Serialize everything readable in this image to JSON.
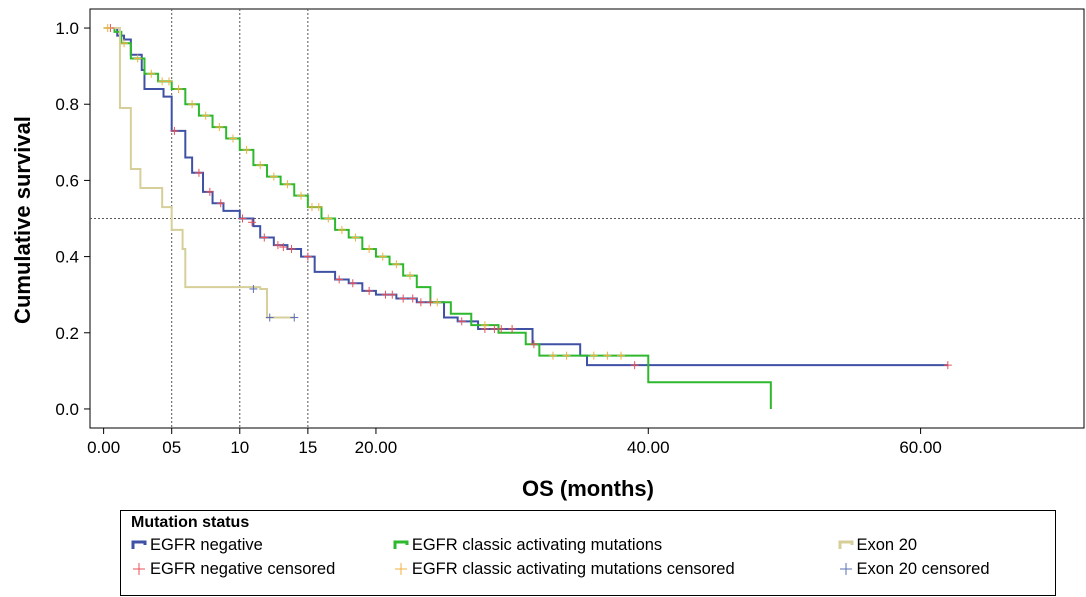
{
  "chart_data": {
    "type": "line",
    "subtype": "kaplan-meier",
    "xlabel": "OS (months)",
    "ylabel": "Cumulative survival",
    "xlim": [
      -1,
      72
    ],
    "ylim": [
      -0.05,
      1.05
    ],
    "x_ticks": [
      {
        "value": 0,
        "label": "0.00"
      },
      {
        "value": 5,
        "label": "05"
      },
      {
        "value": 10,
        "label": "10"
      },
      {
        "value": 15,
        "label": "15"
      },
      {
        "value": 20,
        "label": "20.00"
      },
      {
        "value": 40,
        "label": "40.00"
      },
      {
        "value": 60,
        "label": "60.00"
      }
    ],
    "y_ticks": [
      {
        "value": 0.0,
        "label": "0.0"
      },
      {
        "value": 0.2,
        "label": "0.2"
      },
      {
        "value": 0.4,
        "label": "0.4"
      },
      {
        "value": 0.6,
        "label": "0.6"
      },
      {
        "value": 0.8,
        "label": "0.8"
      },
      {
        "value": 1.0,
        "label": "1.0"
      }
    ],
    "reference_lines": {
      "vertical": [
        5,
        10,
        15
      ],
      "horizontal": [
        0.5
      ]
    },
    "legend": {
      "title": "Mutation status",
      "position": "bottom",
      "entries": [
        {
          "label": "EGFR negative",
          "kind": "line",
          "color": "#3f51a5"
        },
        {
          "label": "EGFR classic activating mutations",
          "kind": "line",
          "color": "#2db82d"
        },
        {
          "label": "Exon 20",
          "kind": "line",
          "color": "#d6cf9a"
        },
        {
          "label": "EGFR negative censored",
          "kind": "cross",
          "color": "#e8505a"
        },
        {
          "label": "EGFR classic activating mutations censored",
          "kind": "cross",
          "color": "#f0b040"
        },
        {
          "label": "Exon 20 censored",
          "kind": "cross",
          "color": "#5b6fb5"
        }
      ]
    },
    "series": [
      {
        "name": "EGFR negative",
        "color": "#3f51a5",
        "censor_color": "#e8505a",
        "steps": [
          [
            0,
            1.0
          ],
          [
            1.0,
            0.98
          ],
          [
            1.5,
            0.97
          ],
          [
            2.0,
            0.93
          ],
          [
            2.8,
            0.89
          ],
          [
            3.0,
            0.84
          ],
          [
            4.4,
            0.82
          ],
          [
            5.0,
            0.73
          ],
          [
            6.0,
            0.66
          ],
          [
            6.5,
            0.62
          ],
          [
            7.3,
            0.57
          ],
          [
            8.0,
            0.54
          ],
          [
            8.8,
            0.52
          ],
          [
            10.0,
            0.5
          ],
          [
            11.0,
            0.48
          ],
          [
            11.5,
            0.45
          ],
          [
            12.5,
            0.43
          ],
          [
            13.5,
            0.42
          ],
          [
            14.5,
            0.4
          ],
          [
            15.5,
            0.36
          ],
          [
            17.0,
            0.34
          ],
          [
            18.0,
            0.33
          ],
          [
            19.0,
            0.31
          ],
          [
            20.0,
            0.3
          ],
          [
            21.5,
            0.29
          ],
          [
            23.0,
            0.28
          ],
          [
            25.0,
            0.24
          ],
          [
            26.0,
            0.23
          ],
          [
            27.5,
            0.21
          ],
          [
            31.0,
            0.21
          ],
          [
            31.5,
            0.17
          ],
          [
            35.0,
            0.14
          ],
          [
            35.5,
            0.115
          ],
          [
            62.0,
            0.115
          ]
        ],
        "censored": [
          [
            0.5,
            1.0
          ],
          [
            5.2,
            0.73
          ],
          [
            7.0,
            0.62
          ],
          [
            7.8,
            0.57
          ],
          [
            8.6,
            0.54
          ],
          [
            10.2,
            0.5
          ],
          [
            10.9,
            0.49
          ],
          [
            11.8,
            0.45
          ],
          [
            12.8,
            0.43
          ],
          [
            13.2,
            0.425
          ],
          [
            13.8,
            0.42
          ],
          [
            15.0,
            0.4
          ],
          [
            17.3,
            0.34
          ],
          [
            18.3,
            0.33
          ],
          [
            19.5,
            0.31
          ],
          [
            20.7,
            0.3
          ],
          [
            21.2,
            0.3
          ],
          [
            22.0,
            0.29
          ],
          [
            22.7,
            0.29
          ],
          [
            23.3,
            0.28
          ],
          [
            24.0,
            0.28
          ],
          [
            26.3,
            0.23
          ],
          [
            28.0,
            0.21
          ],
          [
            28.7,
            0.21
          ],
          [
            29.2,
            0.21
          ],
          [
            30.0,
            0.21
          ],
          [
            31.6,
            0.17
          ],
          [
            39.0,
            0.115
          ],
          [
            62.0,
            0.115
          ]
        ]
      },
      {
        "name": "EGFR classic activating mutations",
        "color": "#2db82d",
        "censor_color": "#f0b040",
        "steps": [
          [
            0,
            1.0
          ],
          [
            0.8,
            0.99
          ],
          [
            1.3,
            0.96
          ],
          [
            2.0,
            0.92
          ],
          [
            3.0,
            0.88
          ],
          [
            4.0,
            0.86
          ],
          [
            5.0,
            0.84
          ],
          [
            6.0,
            0.8
          ],
          [
            7.0,
            0.77
          ],
          [
            8.0,
            0.74
          ],
          [
            9.0,
            0.71
          ],
          [
            10.0,
            0.68
          ],
          [
            11.0,
            0.64
          ],
          [
            12.0,
            0.61
          ],
          [
            13.0,
            0.59
          ],
          [
            14.0,
            0.56
          ],
          [
            15.0,
            0.53
          ],
          [
            16.0,
            0.5
          ],
          [
            17.0,
            0.47
          ],
          [
            18.0,
            0.45
          ],
          [
            19.0,
            0.42
          ],
          [
            20.0,
            0.4
          ],
          [
            21.0,
            0.38
          ],
          [
            22.0,
            0.35
          ],
          [
            23.0,
            0.32
          ],
          [
            24.0,
            0.28
          ],
          [
            25.5,
            0.25
          ],
          [
            27.0,
            0.22
          ],
          [
            29.0,
            0.2
          ],
          [
            31.0,
            0.17
          ],
          [
            32.0,
            0.14
          ],
          [
            40.0,
            0.07
          ],
          [
            49.0,
            0.0
          ]
        ],
        "censored": [
          [
            0.3,
            1.0
          ],
          [
            1.5,
            0.96
          ],
          [
            2.5,
            0.92
          ],
          [
            3.5,
            0.88
          ],
          [
            4.3,
            0.86
          ],
          [
            4.8,
            0.86
          ],
          [
            5.5,
            0.84
          ],
          [
            6.5,
            0.8
          ],
          [
            7.5,
            0.77
          ],
          [
            8.5,
            0.74
          ],
          [
            9.5,
            0.71
          ],
          [
            10.5,
            0.68
          ],
          [
            11.5,
            0.64
          ],
          [
            12.5,
            0.61
          ],
          [
            13.5,
            0.59
          ],
          [
            14.5,
            0.56
          ],
          [
            15.3,
            0.53
          ],
          [
            15.8,
            0.53
          ],
          [
            16.5,
            0.5
          ],
          [
            17.5,
            0.47
          ],
          [
            18.5,
            0.45
          ],
          [
            19.5,
            0.42
          ],
          [
            20.5,
            0.4
          ],
          [
            21.5,
            0.38
          ],
          [
            22.5,
            0.35
          ],
          [
            24.5,
            0.28
          ],
          [
            28.0,
            0.22
          ],
          [
            33.0,
            0.14
          ],
          [
            34.0,
            0.14
          ],
          [
            36.0,
            0.14
          ],
          [
            37.0,
            0.14
          ],
          [
            38.0,
            0.14
          ]
        ]
      },
      {
        "name": "Exon 20",
        "color": "#d6cf9a",
        "censor_color": "#5b6fb5",
        "steps": [
          [
            0,
            1.0
          ],
          [
            1.2,
            0.79
          ],
          [
            2.0,
            0.63
          ],
          [
            2.7,
            0.58
          ],
          [
            4.3,
            0.53
          ],
          [
            5.0,
            0.47
          ],
          [
            5.8,
            0.42
          ],
          [
            6.0,
            0.32
          ],
          [
            10.0,
            0.32
          ],
          [
            11.5,
            0.315
          ],
          [
            12.0,
            0.24
          ],
          [
            14.0,
            0.24
          ]
        ],
        "censored": [
          [
            11.0,
            0.315
          ],
          [
            12.2,
            0.24
          ],
          [
            14.0,
            0.24
          ]
        ]
      }
    ]
  }
}
